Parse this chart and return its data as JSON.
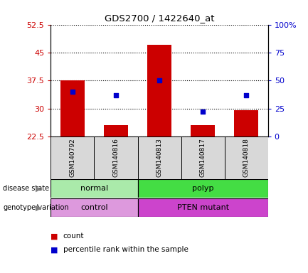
{
  "title": "GDS2700 / 1422640_at",
  "samples": [
    "GSM140792",
    "GSM140816",
    "GSM140813",
    "GSM140817",
    "GSM140818"
  ],
  "bar_values": [
    37.5,
    25.5,
    47.0,
    25.5,
    29.5
  ],
  "bar_bottom": 22.5,
  "percentile_pct": [
    40,
    37,
    50,
    22,
    37
  ],
  "ylim_left": [
    22.5,
    52.5
  ],
  "ylim_right": [
    0,
    100
  ],
  "yticks_left": [
    22.5,
    30,
    37.5,
    45,
    52.5
  ],
  "yticks_right": [
    0,
    25,
    50,
    75,
    100
  ],
  "ytick_labels_left": [
    "22.5",
    "30",
    "37.5",
    "45",
    "52.5"
  ],
  "ytick_labels_right": [
    "0",
    "25",
    "50",
    "75",
    "100%"
  ],
  "bar_color": "#cc0000",
  "marker_color": "#0000cc",
  "disease_groups": [
    {
      "label": "normal",
      "start": 0,
      "end": 2,
      "color": "#aaeaaa"
    },
    {
      "label": "polyp",
      "start": 2,
      "end": 5,
      "color": "#44dd44"
    }
  ],
  "geno_groups": [
    {
      "label": "control",
      "start": 0,
      "end": 2,
      "color": "#dd99dd"
    },
    {
      "label": "PTEN mutant",
      "start": 2,
      "end": 5,
      "color": "#cc44cc"
    }
  ],
  "axis_bg": "#d8d8d8",
  "legend_count_label": "count",
  "legend_pct_label": "percentile rank within the sample"
}
